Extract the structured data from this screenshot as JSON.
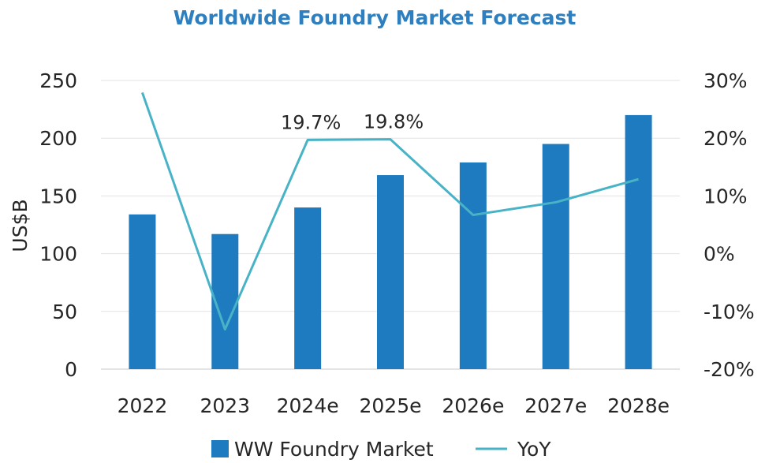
{
  "chart_data": {
    "type": "bar",
    "title": "Worldwide Foundry Market Forecast",
    "ylabel": "US$B",
    "y2label": "",
    "categories": [
      "2022",
      "2023",
      "2024e",
      "2025e",
      "2026e",
      "2027e",
      "2028e"
    ],
    "ylim": [
      0,
      250
    ],
    "yticks": [
      0,
      50,
      100,
      150,
      200,
      250
    ],
    "y2lim": [
      -20,
      30
    ],
    "y2ticks": [
      "-20%",
      "-10%",
      "0%",
      "10%",
      "20%",
      "30%"
    ],
    "y2tick_values": [
      -20,
      -10,
      0,
      10,
      20,
      30
    ],
    "grid": true,
    "legend_position": "bottom",
    "series": [
      {
        "name": "WW Foundry Market",
        "type": "bar",
        "axis": "left",
        "color": "#1f7bbf",
        "values": [
          134,
          117,
          140,
          168,
          179,
          195,
          220
        ]
      },
      {
        "name": "YoY",
        "type": "line",
        "axis": "right",
        "color": "#48b3c6",
        "values": [
          27.9,
          -13.1,
          19.7,
          19.8,
          6.7,
          8.9,
          12.9
        ]
      }
    ],
    "annotations": [
      {
        "category": "2024e",
        "text": "19.7%"
      },
      {
        "category": "2025e",
        "text": "19.8%"
      }
    ],
    "colors": {
      "title": "#2e7fbf",
      "grid": "#e3e3e3"
    }
  }
}
